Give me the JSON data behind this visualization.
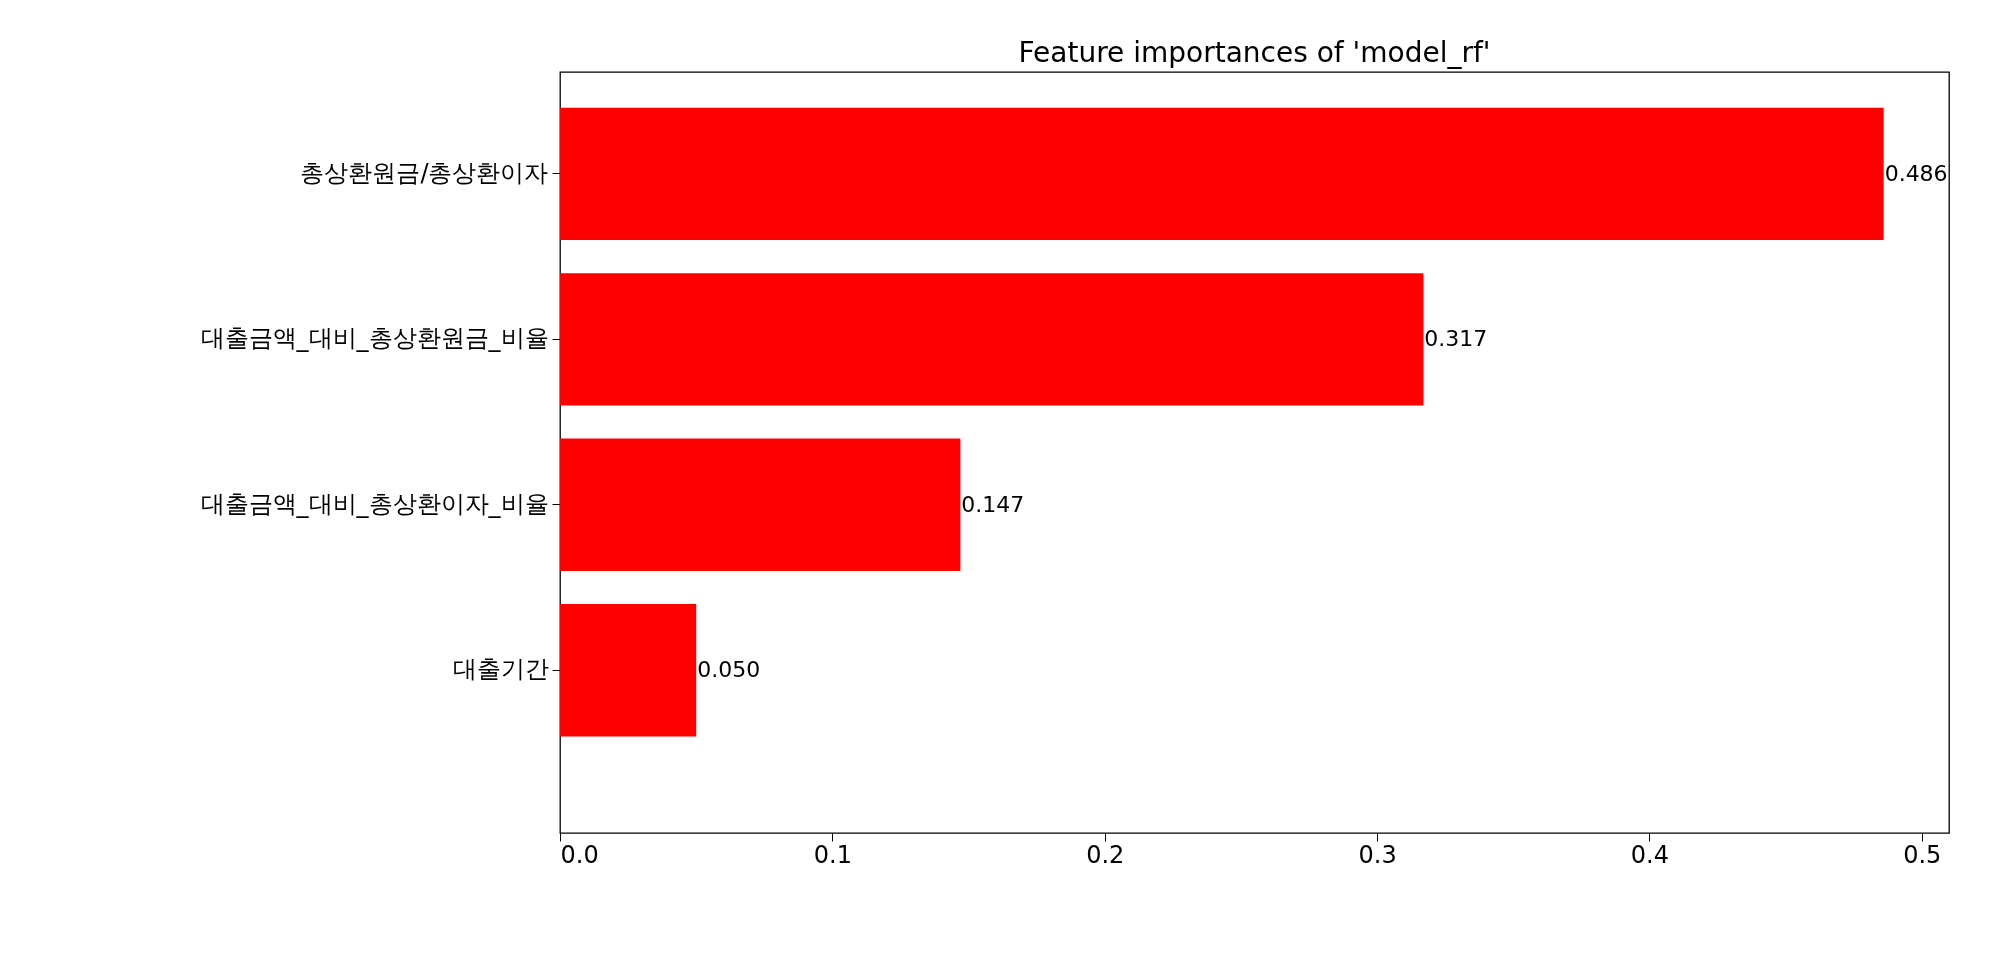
{
  "chart_data": {
    "type": "bar",
    "orientation": "horizontal",
    "title": "Feature importances of 'model_rf'",
    "categories": [
      "총상환원금/총상환이자",
      "대출금액_대비_총상환원금_비율",
      "대출금액_대비_총상환이자_비율",
      "대출기간"
    ],
    "values": [
      0.486,
      0.317,
      0.147,
      0.05
    ],
    "value_labels": [
      "0.486",
      "0.317",
      "0.147",
      "0.050"
    ],
    "color": "#ff0000",
    "xlim": [
      0,
      0.51
    ],
    "xticks": [
      {
        "value": 0,
        "label": "0.0"
      },
      0.1,
      0.2,
      0.3,
      0.4,
      0.5
    ],
    "grid": false
  }
}
